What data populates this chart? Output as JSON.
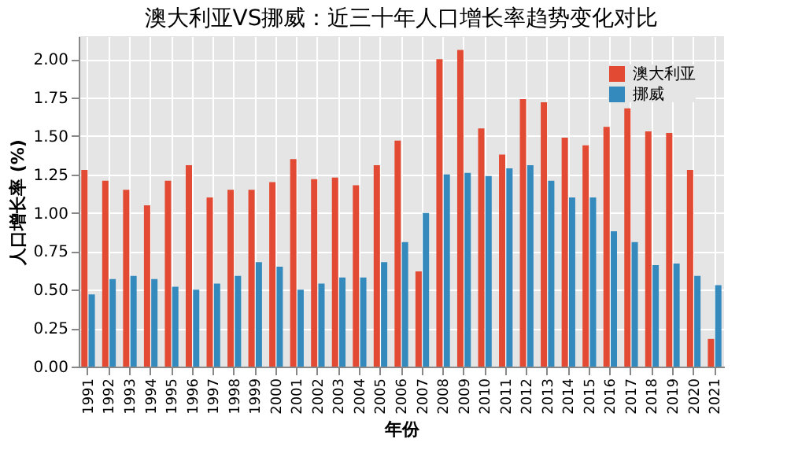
{
  "chart_data": {
    "type": "bar",
    "title": "澳大利亚VS挪威：近三十年人口增长率趋势变化对比",
    "xlabel": "年份",
    "ylabel": "人口增长率 (%)",
    "categories": [
      "1991",
      "1992",
      "1993",
      "1994",
      "1995",
      "1996",
      "1997",
      "1998",
      "1999",
      "2000",
      "2001",
      "2002",
      "2003",
      "2004",
      "2005",
      "2006",
      "2007",
      "2008",
      "2009",
      "2010",
      "2011",
      "2012",
      "2013",
      "2014",
      "2015",
      "2016",
      "2017",
      "2018",
      "2019",
      "2020",
      "2021"
    ],
    "series": [
      {
        "name": "澳大利亚",
        "color": "#e24a33",
        "values": [
          1.28,
          1.21,
          1.15,
          1.05,
          1.21,
          1.31,
          1.1,
          1.15,
          1.15,
          1.2,
          1.35,
          1.22,
          1.23,
          1.18,
          1.31,
          1.47,
          0.62,
          2.0,
          2.06,
          1.55,
          1.38,
          1.74,
          1.72,
          1.49,
          1.44,
          1.56,
          1.68,
          1.53,
          1.52,
          1.28,
          0.18
        ]
      },
      {
        "name": "挪威",
        "color": "#348abd",
        "values": [
          0.47,
          0.57,
          0.59,
          0.57,
          0.52,
          0.5,
          0.54,
          0.59,
          0.68,
          0.65,
          0.5,
          0.54,
          0.58,
          0.58,
          0.68,
          0.81,
          1.0,
          1.25,
          1.26,
          1.24,
          1.29,
          1.31,
          1.21,
          1.1,
          1.1,
          0.88,
          0.81,
          0.66,
          0.67,
          0.59,
          0.53
        ]
      }
    ],
    "ylim": [
      0,
      2.15
    ],
    "yticks": [
      {
        "value": 0,
        "label": "0.00"
      },
      {
        "value": 0.25,
        "label": "0.25"
      },
      {
        "value": 0.5,
        "label": "0.50"
      },
      {
        "value": 0.75,
        "label": "0.75"
      },
      {
        "value": 1,
        "label": "1.00"
      },
      {
        "value": 1.25,
        "label": "1.25"
      },
      {
        "value": 1.5,
        "label": "1.50"
      },
      {
        "value": 1.75,
        "label": "1.75"
      },
      {
        "value": 2,
        "label": "2.00"
      }
    ],
    "grid": true,
    "legend": "top right"
  }
}
